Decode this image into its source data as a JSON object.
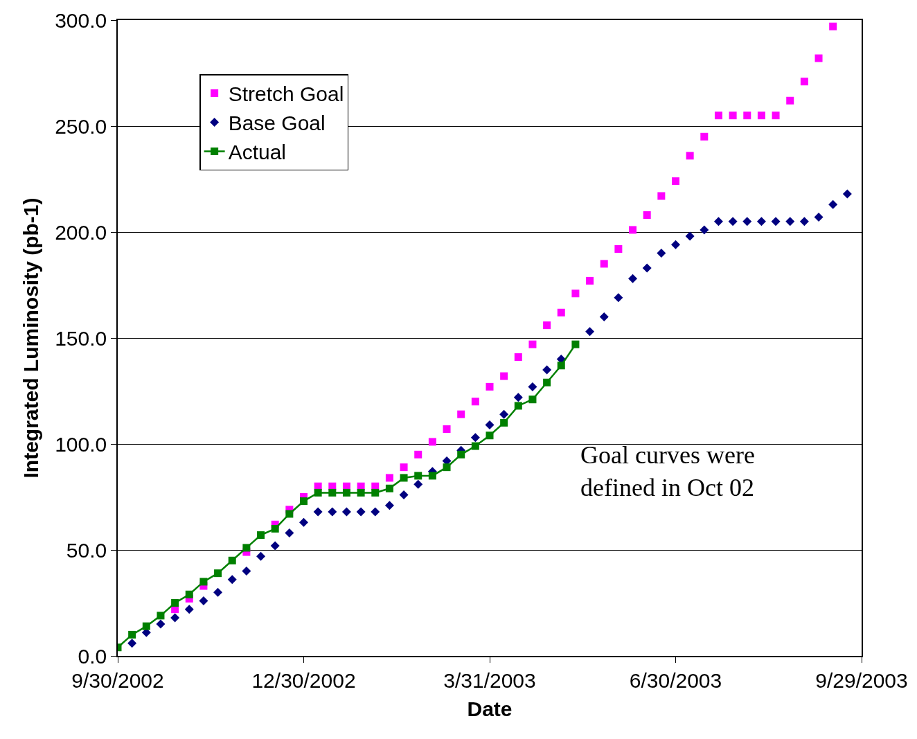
{
  "chart_data": {
    "type": "scatter",
    "xlabel": "Date",
    "ylabel": "Integrated Luminosity (pb-1)",
    "x": [
      "2002-09-30",
      "2002-10-07",
      "2002-10-14",
      "2002-10-21",
      "2002-10-28",
      "2002-11-04",
      "2002-11-11",
      "2002-11-18",
      "2002-11-25",
      "2002-12-02",
      "2002-12-09",
      "2002-12-16",
      "2002-12-23",
      "2002-12-30",
      "2003-01-06",
      "2003-01-13",
      "2003-01-20",
      "2003-01-27",
      "2003-02-03",
      "2003-02-10",
      "2003-02-17",
      "2003-02-24",
      "2003-03-03",
      "2003-03-10",
      "2003-03-17",
      "2003-03-24",
      "2003-03-31",
      "2003-04-07",
      "2003-04-14",
      "2003-04-21",
      "2003-04-28",
      "2003-05-05",
      "2003-05-12",
      "2003-05-19",
      "2003-05-26",
      "2003-06-02",
      "2003-06-09",
      "2003-06-16",
      "2003-06-23",
      "2003-06-30",
      "2003-07-07",
      "2003-07-14",
      "2003-07-21",
      "2003-07-28",
      "2003-08-04",
      "2003-08-11",
      "2003-08-18",
      "2003-08-25",
      "2003-09-01",
      "2003-09-08",
      "2003-09-15",
      "2003-09-22"
    ],
    "series": [
      {
        "name": "Stretch Goal",
        "marker": "square",
        "color": "#ff00ff",
        "values": [
          null,
          null,
          null,
          null,
          22,
          27,
          33,
          null,
          null,
          49,
          null,
          62,
          69,
          75,
          80,
          80,
          80,
          80,
          80,
          84,
          89,
          95,
          101,
          107,
          114,
          120,
          127,
          132,
          141,
          147,
          156,
          162,
          171,
          177,
          185,
          192,
          201,
          208,
          217,
          224,
          236,
          245,
          255,
          255,
          255,
          255,
          255,
          262,
          271,
          282,
          297,
          null
        ]
      },
      {
        "name": "Base Goal",
        "marker": "diamond",
        "color": "#000080",
        "values": [
          null,
          6,
          11,
          15,
          18,
          22,
          26,
          30,
          36,
          40,
          47,
          52,
          58,
          63,
          68,
          68,
          68,
          68,
          68,
          71,
          76,
          81,
          87,
          92,
          97,
          103,
          109,
          114,
          122,
          127,
          135,
          140,
          null,
          153,
          160,
          169,
          178,
          183,
          190,
          194,
          198,
          201,
          205,
          205,
          205,
          205,
          205,
          205,
          205,
          207,
          213,
          218
        ]
      },
      {
        "name": "Actual",
        "type": "line",
        "marker": "square",
        "line_style": "solid",
        "color": "#008000",
        "values": [
          4,
          10,
          14,
          19,
          25,
          29,
          35,
          39,
          45,
          51,
          57,
          60,
          67,
          73,
          77,
          77,
          77,
          77,
          77,
          79,
          84,
          85,
          85,
          89,
          95,
          99,
          104,
          110,
          118,
          121,
          129,
          137,
          147,
          null,
          null,
          null,
          null,
          null,
          null,
          null,
          null,
          null,
          null,
          null,
          null,
          null,
          null,
          null,
          null,
          null,
          null,
          null
        ]
      }
    ],
    "xlim": [
      "2002-09-30",
      "2003-09-29"
    ],
    "xticks": [
      {
        "value": "2002-09-30",
        "label": "9/30/2002"
      },
      {
        "value": "2002-12-30",
        "label": "12/30/2002"
      },
      {
        "value": "2003-03-31",
        "label": "3/31/2003"
      },
      {
        "value": "2003-06-30",
        "label": "6/30/2003"
      },
      {
        "value": "2003-09-29",
        "label": "9/29/2003"
      }
    ],
    "ylim": [
      0,
      300
    ],
    "yticks": [
      {
        "value": 0,
        "label": "0.0"
      },
      {
        "value": 50,
        "label": "50.0"
      },
      {
        "value": 100,
        "label": "100.0"
      },
      {
        "value": 150,
        "label": "150.0"
      },
      {
        "value": 200,
        "label": "200.0"
      },
      {
        "value": 250,
        "label": "250.0"
      },
      {
        "value": 300,
        "label": "300.0"
      }
    ],
    "grid": "y",
    "legend": "top left",
    "annotations": [
      "Goal curves were\ndefined in Oct 02"
    ]
  }
}
